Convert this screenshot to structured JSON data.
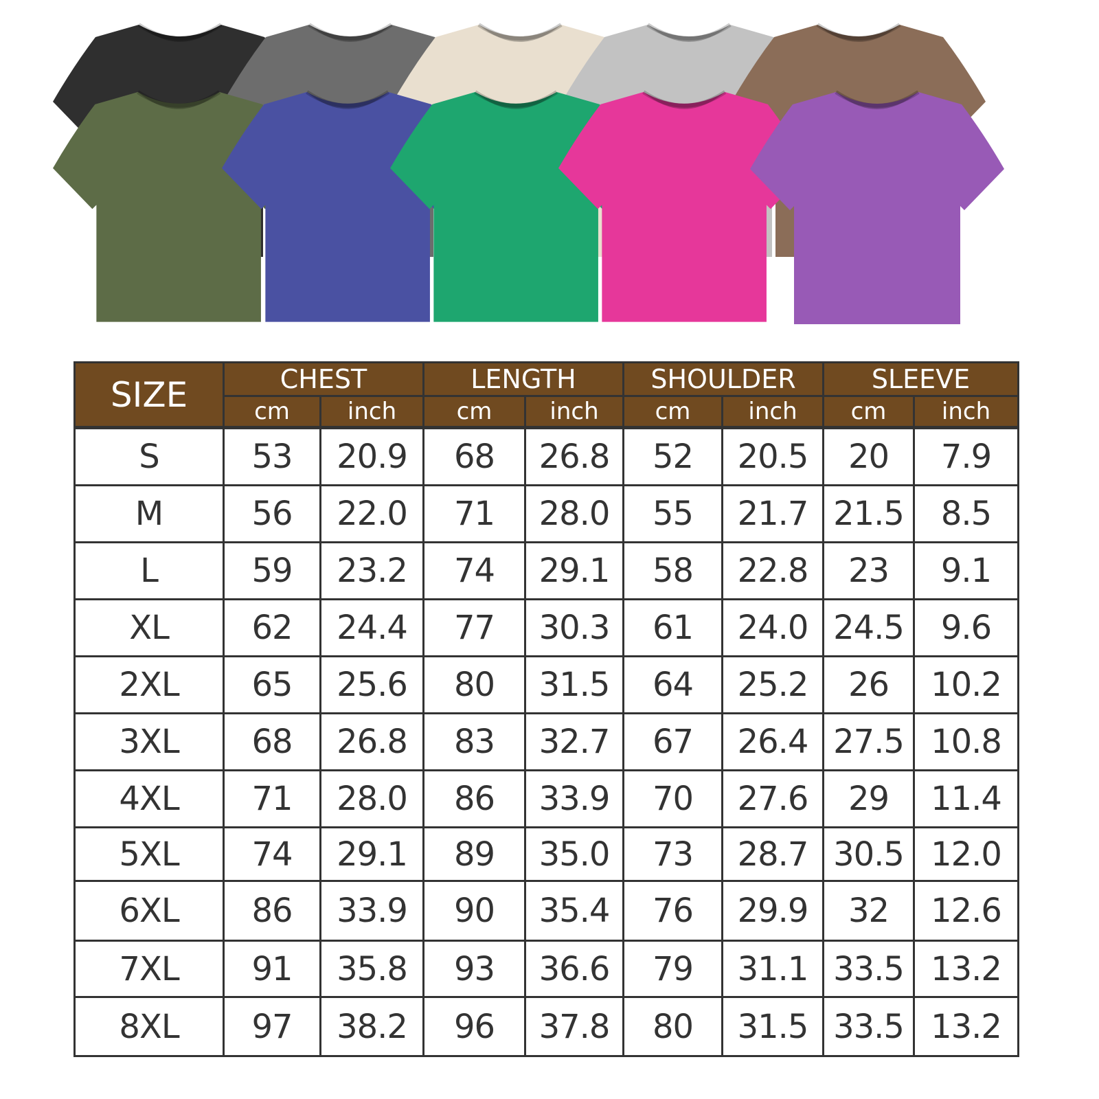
{
  "shirts": {
    "back_row": [
      {
        "color_name": "black",
        "hex": "#2f2f2f"
      },
      {
        "color_name": "gray",
        "hex": "#6d6d6d"
      },
      {
        "color_name": "cream",
        "hex": "#e9dfcf"
      },
      {
        "color_name": "light-gray",
        "hex": "#c2c2c2"
      },
      {
        "color_name": "brown",
        "hex": "#8b6d58"
      }
    ],
    "front_row": [
      {
        "color_name": "olive",
        "hex": "#5d6c47"
      },
      {
        "color_name": "blue",
        "hex": "#4a51a2"
      },
      {
        "color_name": "green",
        "hex": "#1ea66f"
      },
      {
        "color_name": "pink",
        "hex": "#e6379a"
      },
      {
        "color_name": "purple",
        "hex": "#985ab6"
      }
    ]
  },
  "size_chart": {
    "header_color": "#704a20",
    "size_label": "SIZE",
    "groups": [
      "CHEST",
      "LENGTH",
      "SHOULDER",
      "SLEEVE"
    ],
    "units": [
      "cm",
      "inch"
    ],
    "rows": [
      [
        "S",
        "53",
        "20.9",
        "68",
        "26.8",
        "52",
        "20.5",
        "20",
        "7.9"
      ],
      [
        "M",
        "56",
        "22.0",
        "71",
        "28.0",
        "55",
        "21.7",
        "21.5",
        "8.5"
      ],
      [
        "L",
        "59",
        "23.2",
        "74",
        "29.1",
        "58",
        "22.8",
        "23",
        "9.1"
      ],
      [
        "XL",
        "62",
        "24.4",
        "77",
        "30.3",
        "61",
        "24.0",
        "24.5",
        "9.6"
      ],
      [
        "2XL",
        "65",
        "25.6",
        "80",
        "31.5",
        "64",
        "25.2",
        "26",
        "10.2"
      ],
      [
        "3XL",
        "68",
        "26.8",
        "83",
        "32.7",
        "67",
        "26.4",
        "27.5",
        "10.8"
      ],
      [
        "4XL",
        "71",
        "28.0",
        "86",
        "33.9",
        "70",
        "27.6",
        "29",
        "11.4"
      ],
      [
        "5XL",
        "74",
        "29.1",
        "89",
        "35.0",
        "73",
        "28.7",
        "30.5",
        "12.0"
      ],
      [
        "6XL",
        "86",
        "33.9",
        "90",
        "35.4",
        "76",
        "29.9",
        "32",
        "12.6"
      ],
      [
        "7XL",
        "91",
        "35.8",
        "93",
        "36.6",
        "79",
        "31.1",
        "33.5",
        "13.2"
      ],
      [
        "8XL",
        "97",
        "38.2",
        "96",
        "37.8",
        "80",
        "31.5",
        "33.5",
        "13.2"
      ]
    ]
  }
}
